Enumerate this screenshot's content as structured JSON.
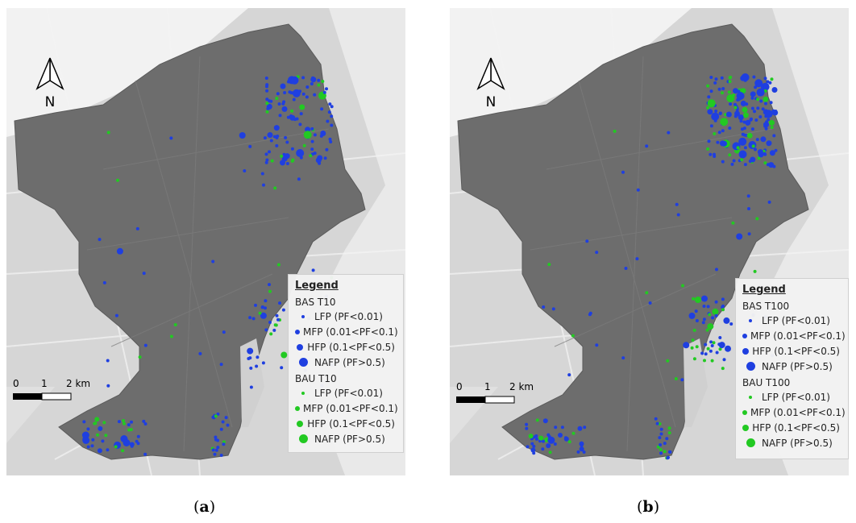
{
  "panels": [
    {
      "id": "a",
      "caption": "a",
      "north_label": "N",
      "scale": {
        "zero": "0",
        "mid": "1",
        "end": "2 km"
      },
      "legend": {
        "title": "Legend",
        "groups": [
          {
            "name": "BAS T10",
            "color": "#1f3fe0",
            "items": [
              "LFP (PF<0.01)",
              "MFP (0.01<PF<0.1)",
              "HFP (0.1<PF<0.5)",
              "NAFP (PF>0.5)"
            ]
          },
          {
            "name": "BAU T10",
            "color": "#22c922",
            "items": [
              "LFP (PF<0.01)",
              "MFP (0.01<PF<0.1)",
              "HFP (0.1<PF<0.5)",
              "NAFP (PF>0.5)"
            ]
          }
        ]
      }
    },
    {
      "id": "b",
      "caption": "b",
      "north_label": "N",
      "scale": {
        "zero": "0",
        "mid": "1",
        "end": "2 km"
      },
      "legend": {
        "title": "Legend",
        "groups": [
          {
            "name": "BAS T100",
            "color": "#1f3fe0",
            "items": [
              "LFP (PF<0.01)",
              "MFP (0.01<PF<0.1)",
              "HFP (0.1<PF<0.5)",
              "NAFP (PF>0.5)"
            ]
          },
          {
            "name": "BAU T100",
            "color": "#22c922",
            "items": [
              "LFP (PF<0.01)",
              "MFP (0.01<PF<0.1)",
              "HFP (0.1<PF<0.5)",
              "NAFP (PF>0.5)"
            ]
          }
        ]
      }
    }
  ],
  "colors": {
    "bas": "#1f3fe0",
    "bau": "#22c922",
    "district": "#6b6b6b",
    "basemap": "#d9d9d9",
    "sea": "#e6e6e6"
  }
}
